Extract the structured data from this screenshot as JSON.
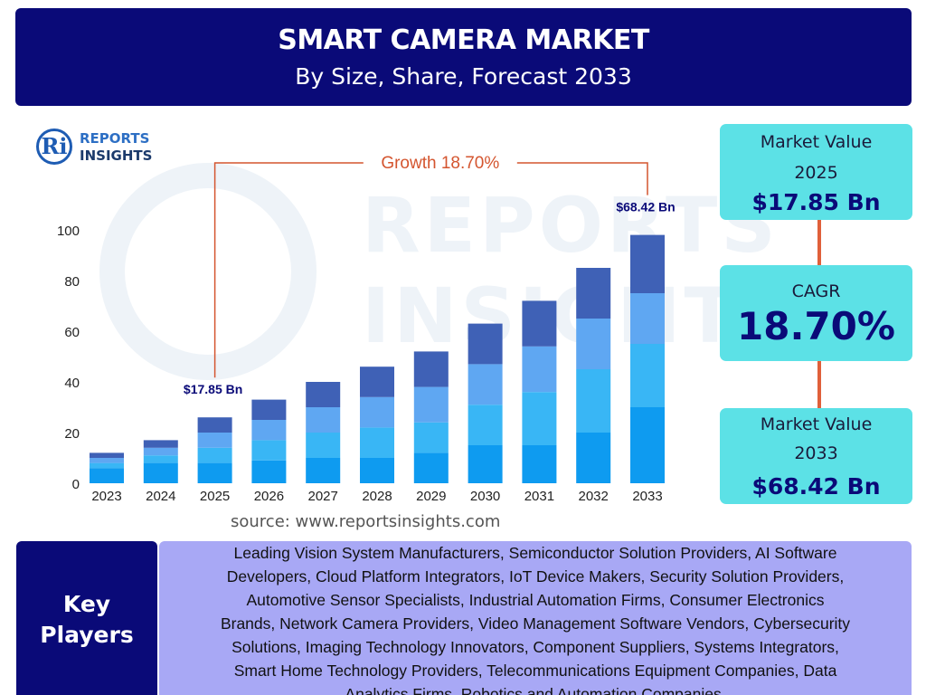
{
  "header": {
    "title": "SMART CAMERA MARKET",
    "subtitle": "By Size, Share, Forecast 2033"
  },
  "logo": {
    "mark": "Ri",
    "line1": "REPORTS",
    "line2": "INSIGHTS"
  },
  "watermark": {
    "line1": "REPORTS",
    "line2": "INSIGHTS"
  },
  "colors": {
    "header_bg": "#0a0a78",
    "side_box_bg": "#5ce1e6",
    "connector": "#e0603a",
    "key_players_text_bg": "#a8a8f5",
    "growth_text": "#d4552f",
    "segments": [
      "#0e9bf0",
      "#39b6f5",
      "#5fa7f2",
      "#3f61b6"
    ]
  },
  "chart_data": {
    "type": "bar",
    "stacked": true,
    "categories": [
      "2023",
      "2024",
      "2025",
      "2026",
      "2027",
      "2028",
      "2029",
      "2030",
      "2031",
      "2032",
      "2033"
    ],
    "series": [
      {
        "values": [
          6,
          8,
          8,
          9,
          10,
          10,
          12,
          15,
          15,
          20,
          30
        ]
      },
      {
        "values": [
          2,
          3,
          6,
          8,
          10,
          12,
          12,
          16,
          21,
          25,
          25
        ]
      },
      {
        "values": [
          2,
          3,
          6,
          8,
          10,
          12,
          14,
          16,
          18,
          20,
          20
        ]
      },
      {
        "values": [
          2,
          3,
          6,
          8,
          10,
          12,
          14,
          16,
          18,
          20,
          23
        ]
      }
    ],
    "ylim": [
      0,
      100
    ],
    "yticks": [
      0,
      20,
      40,
      60,
      80,
      100
    ],
    "grid": false,
    "annotations": [
      {
        "category": "2025",
        "text": "$17.85 Bn"
      },
      {
        "category": "2033",
        "text": "$68.42 Bn"
      }
    ],
    "growth_label": "Growth 18.70%"
  },
  "source": "source: www.reportsinsights.com",
  "stats": {
    "market_value_2025": {
      "label_line1": "Market Value",
      "label_line2": "2025",
      "value": "$17.85 Bn"
    },
    "cagr": {
      "label": "CAGR",
      "value": "18.70%"
    },
    "market_value_2033": {
      "label_line1": "Market Value",
      "label_line2": "2033",
      "value": "$68.42 Bn"
    }
  },
  "key_players": {
    "heading_line1": "Key",
    "heading_line2": "Players",
    "lines": [
      "Leading Vision System Manufacturers, Semiconductor Solution Providers, AI Software",
      "Developers, Cloud Platform Integrators, IoT Device Makers, Security Solution Providers,",
      "Automotive Sensor Specialists, Industrial Automation Firms, Consumer Electronics",
      "Brands, Network Camera Providers, Video Management Software Vendors, Cybersecurity",
      "Solutions, Imaging Technology Innovators, Component Suppliers, Systems Integrators,",
      "Smart Home Technology Providers, Telecommunications Equipment Companies, Data",
      "Analytics Firms, Robotics and Automation Companies."
    ]
  }
}
